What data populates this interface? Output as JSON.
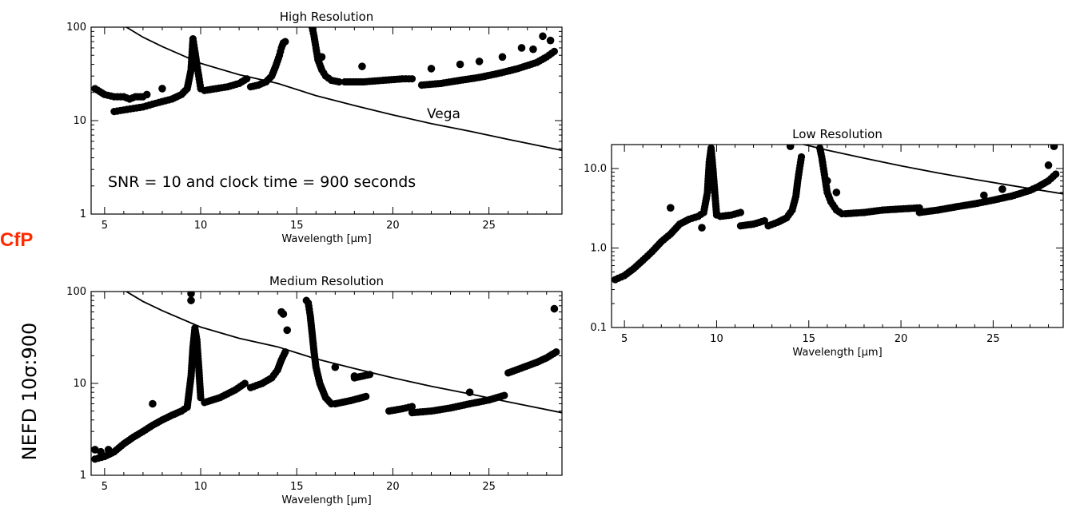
{
  "logo_text": "CfP",
  "colors": {
    "logo": "#ff2a00",
    "points": "#000000",
    "curve": "#000000"
  },
  "y_axis_label": "NEFD 10σ:900",
  "chart_data": [
    {
      "id": "high",
      "type": "scatter",
      "title": "High Resolution",
      "xlabel": "Wavelength [μm]",
      "xlim": [
        4.3,
        28.8
      ],
      "ylim": [
        1,
        100
      ],
      "yscale": "log",
      "x_ticks": [
        5,
        10,
        15,
        20,
        25
      ],
      "x_tick_labels": [
        "5",
        "10",
        "15",
        "20",
        "25"
      ],
      "y_ticks": [
        1,
        10,
        100
      ],
      "y_tick_labels": [
        "1",
        "10",
        "100"
      ],
      "annotations": [
        "SNR = 10 and clock time = 900 seconds",
        "Vega"
      ],
      "vega_curve": {
        "x": [
          5.5,
          7,
          8,
          10,
          12,
          14,
          16,
          18,
          20,
          22,
          24,
          26,
          28.8
        ],
        "y": [
          120,
          78,
          62,
          41,
          31,
          25,
          18.5,
          14.5,
          11.5,
          9.3,
          7.7,
          6.3,
          4.8
        ]
      },
      "series": [
        {
          "x": [
            4.5,
            5.0,
            5.5,
            6.0,
            6.3,
            6.6,
            7.0
          ],
          "y": [
            22,
            19,
            18,
            18,
            17,
            18,
            18
          ]
        },
        {
          "x": [
            5.5,
            6.0,
            6.5,
            7.0,
            7.5,
            8.0,
            8.5,
            9.0,
            9.3,
            9.5,
            9.6,
            9.7,
            9.8,
            9.9,
            10.0
          ],
          "y": [
            12.5,
            13,
            13.5,
            14,
            15,
            16,
            17,
            19,
            22,
            35,
            75,
            55,
            40,
            30,
            22
          ]
        },
        {
          "x": [
            10.2,
            10.8,
            11.4,
            12.0,
            12.4
          ],
          "y": [
            21,
            22,
            23,
            25,
            28
          ]
        },
        {
          "x": [
            12.6,
            13.0,
            13.4,
            13.7,
            13.9,
            14.1,
            14.2,
            14.3,
            14.4
          ],
          "y": [
            23,
            24,
            26,
            30,
            38,
            50,
            60,
            68,
            70
          ]
        },
        {
          "x": [
            15.8,
            15.9,
            16.0,
            16.1,
            16.3,
            16.5,
            16.8,
            17.2
          ],
          "y": [
            100,
            80,
            60,
            45,
            35,
            30,
            27,
            26
          ]
        },
        {
          "x": [
            17.5,
            18.5,
            19.5,
            20.5,
            21.0
          ],
          "y": [
            26,
            26,
            27,
            28,
            28
          ]
        },
        {
          "x": [
            21.5,
            22.5,
            23.5,
            24.5,
            25.5,
            26.5,
            27.5,
            28.0,
            28.4
          ],
          "y": [
            24,
            25,
            27,
            29,
            32,
            36,
            42,
            48,
            55
          ]
        }
      ],
      "outliers": {
        "x": [
          7.2,
          8.0,
          16.3,
          18.4,
          22.0,
          23.5,
          24.5,
          25.7,
          26.7,
          27.3,
          27.8,
          28.2
        ],
        "y": [
          19,
          22,
          48,
          38,
          36,
          40,
          43,
          48,
          60,
          58,
          80,
          72
        ]
      }
    },
    {
      "id": "medium",
      "type": "scatter",
      "title": "Medium Resolution",
      "xlabel": "Wavelength [μm]",
      "xlim": [
        4.3,
        28.8
      ],
      "ylim": [
        1,
        100
      ],
      "yscale": "log",
      "x_ticks": [
        5,
        10,
        15,
        20,
        25
      ],
      "x_tick_labels": [
        "5",
        "10",
        "15",
        "20",
        "25"
      ],
      "y_ticks": [
        1,
        10,
        100
      ],
      "y_tick_labels": [
        "1",
        "10",
        "100"
      ],
      "vega_curve": {
        "x": [
          5.5,
          7,
          8,
          10,
          12,
          14,
          16,
          18,
          20,
          22,
          24,
          26,
          28.8
        ],
        "y": [
          120,
          78,
          62,
          41,
          31,
          25,
          18.5,
          14.5,
          11.5,
          9.3,
          7.7,
          6.3,
          4.8
        ]
      },
      "series": [
        {
          "x": [
            4.5,
            5.0,
            5.5,
            6.0,
            6.5,
            7.0,
            7.5,
            8.0,
            8.5,
            9.0,
            9.3,
            9.5,
            9.6,
            9.7,
            9.8,
            9.9,
            10.0
          ],
          "y": [
            1.5,
            1.6,
            1.8,
            2.2,
            2.6,
            3.0,
            3.5,
            4.0,
            4.5,
            5.0,
            5.5,
            12,
            25,
            40,
            30,
            15,
            7
          ]
        },
        {
          "x": [
            10.2,
            11.0,
            11.8,
            12.3
          ],
          "y": [
            6.2,
            7.0,
            8.5,
            10
          ]
        },
        {
          "x": [
            12.6,
            13.2,
            13.7,
            14.0,
            14.2,
            14.4
          ],
          "y": [
            9,
            10,
            11.5,
            14,
            18,
            22
          ]
        },
        {
          "x": [
            15.5,
            15.6,
            15.7,
            15.8,
            15.9,
            16.0,
            16.2,
            16.5,
            16.8
          ],
          "y": [
            80,
            75,
            55,
            35,
            22,
            15,
            10,
            7,
            6
          ]
        },
        {
          "x": [
            17.0,
            17.8,
            18.6
          ],
          "y": [
            6,
            6.5,
            7.2
          ]
        },
        {
          "x": [
            18.0,
            18.8
          ],
          "y": [
            11.5,
            12.5
          ]
        },
        {
          "x": [
            19.8,
            20.5,
            21.0
          ],
          "y": [
            5,
            5.3,
            5.6
          ]
        },
        {
          "x": [
            21.0,
            22.0,
            23.0,
            24.0,
            25.0,
            25.8
          ],
          "y": [
            4.8,
            5.0,
            5.4,
            6.0,
            6.6,
            7.4
          ]
        },
        {
          "x": [
            26.0,
            26.8,
            27.5,
            28.0,
            28.5
          ],
          "y": [
            13,
            15,
            17,
            19,
            22
          ]
        }
      ],
      "outliers": {
        "x": [
          4.5,
          4.8,
          5.2,
          7.5,
          9.5,
          9.5,
          14.3,
          14.5,
          14.2,
          17.0,
          18.0,
          24.0,
          28.4
        ],
        "y": [
          1.9,
          1.8,
          1.9,
          6,
          95,
          80,
          57,
          38,
          60,
          15,
          12,
          8,
          65
        ]
      }
    },
    {
      "id": "low",
      "type": "scatter",
      "title": "Low Resolution",
      "xlabel": "Wavelength [μm]",
      "xlim": [
        4.3,
        28.8
      ],
      "ylim": [
        0.1,
        20
      ],
      "yscale": "log",
      "x_ticks": [
        5,
        10,
        15,
        20,
        25
      ],
      "x_tick_labels": [
        "5",
        "10",
        "15",
        "20",
        "25"
      ],
      "y_ticks": [
        0.1,
        1.0,
        10.0
      ],
      "y_tick_labels": [
        "0.1",
        "1.0",
        "10.0"
      ],
      "vega_curve": {
        "x": [
          14.0,
          16,
          18,
          20,
          22,
          24,
          26,
          28.8
        ],
        "y": [
          22,
          17,
          13.5,
          10.8,
          8.8,
          7.3,
          6.1,
          4.8
        ]
      },
      "series": [
        {
          "x": [
            4.5,
            5.0,
            5.5,
            6.0,
            6.5,
            7.0,
            7.5,
            8.0,
            8.5,
            9.0,
            9.3,
            9.5,
            9.6,
            9.7,
            9.8,
            9.9,
            10.0
          ],
          "y": [
            0.4,
            0.45,
            0.55,
            0.7,
            0.9,
            1.2,
            1.5,
            2.0,
            2.3,
            2.5,
            2.8,
            5,
            12,
            18,
            10,
            5,
            2.6
          ]
        },
        {
          "x": [
            10.2,
            10.8,
            11.3
          ],
          "y": [
            2.5,
            2.6,
            2.8
          ]
        },
        {
          "x": [
            11.3,
            12.0,
            12.6
          ],
          "y": [
            1.9,
            2.0,
            2.2
          ]
        },
        {
          "x": [
            12.8,
            13.3,
            13.8,
            14.1,
            14.3,
            14.4,
            14.5,
            14.6
          ],
          "y": [
            1.9,
            2.1,
            2.4,
            3.0,
            4.5,
            7,
            10,
            14
          ]
        },
        {
          "x": [
            15.6,
            15.7,
            15.8,
            15.9,
            16.0,
            16.2,
            16.5,
            16.8
          ],
          "y": [
            18,
            14,
            10,
            7,
            5,
            3.8,
            3.0,
            2.7
          ]
        },
        {
          "x": [
            17.0,
            18.0,
            19.0,
            20.0,
            21.0
          ],
          "y": [
            2.7,
            2.8,
            3.0,
            3.1,
            3.2
          ]
        },
        {
          "x": [
            21.0,
            22.0,
            23.0,
            24.0,
            25.0,
            26.0,
            27.0,
            27.5,
            28.0,
            28.4
          ],
          "y": [
            2.8,
            3.0,
            3.3,
            3.6,
            4.0,
            4.5,
            5.3,
            6.0,
            7.0,
            8.5
          ]
        }
      ],
      "outliers": {
        "x": [
          7.5,
          9.2,
          14.0,
          16.0,
          16.5,
          28.0,
          28.3,
          24.5,
          25.5
        ],
        "y": [
          3.2,
          1.8,
          19,
          7,
          5,
          11,
          19,
          4.6,
          5.5
        ]
      }
    }
  ]
}
